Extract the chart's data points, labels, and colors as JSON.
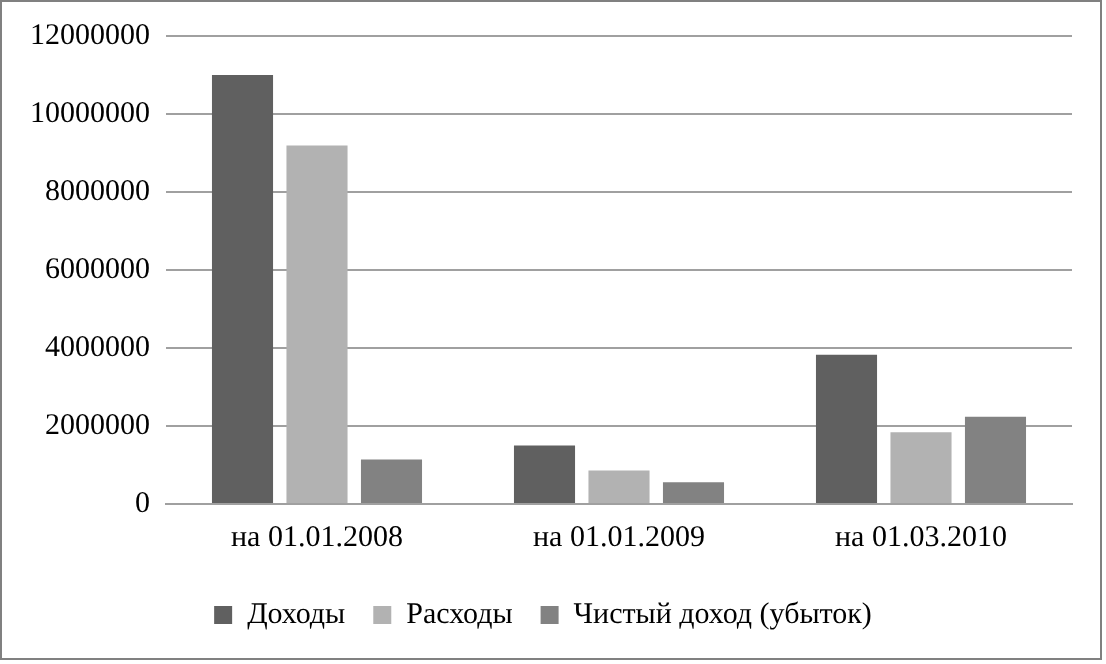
{
  "chart_data": {
    "type": "bar",
    "categories": [
      "на 01.01.2008",
      "на 01.01.2009",
      "на 01.03.2010"
    ],
    "series": [
      {
        "name": "Доходы",
        "color": "#606060",
        "values": [
          11000000,
          1500000,
          3830000
        ]
      },
      {
        "name": "Расходы",
        "color": "#b2b2b2",
        "values": [
          9190000,
          860000,
          1840000
        ]
      },
      {
        "name": "Чистый доход (убыток)",
        "color": "#828282",
        "values": [
          1140000,
          560000,
          2240000
        ]
      }
    ],
    "ylim": [
      0,
      12000000
    ],
    "yticks": [
      0,
      2000000,
      4000000,
      6000000,
      8000000,
      10000000,
      12000000
    ],
    "grid": "y",
    "legend": "bottom"
  }
}
